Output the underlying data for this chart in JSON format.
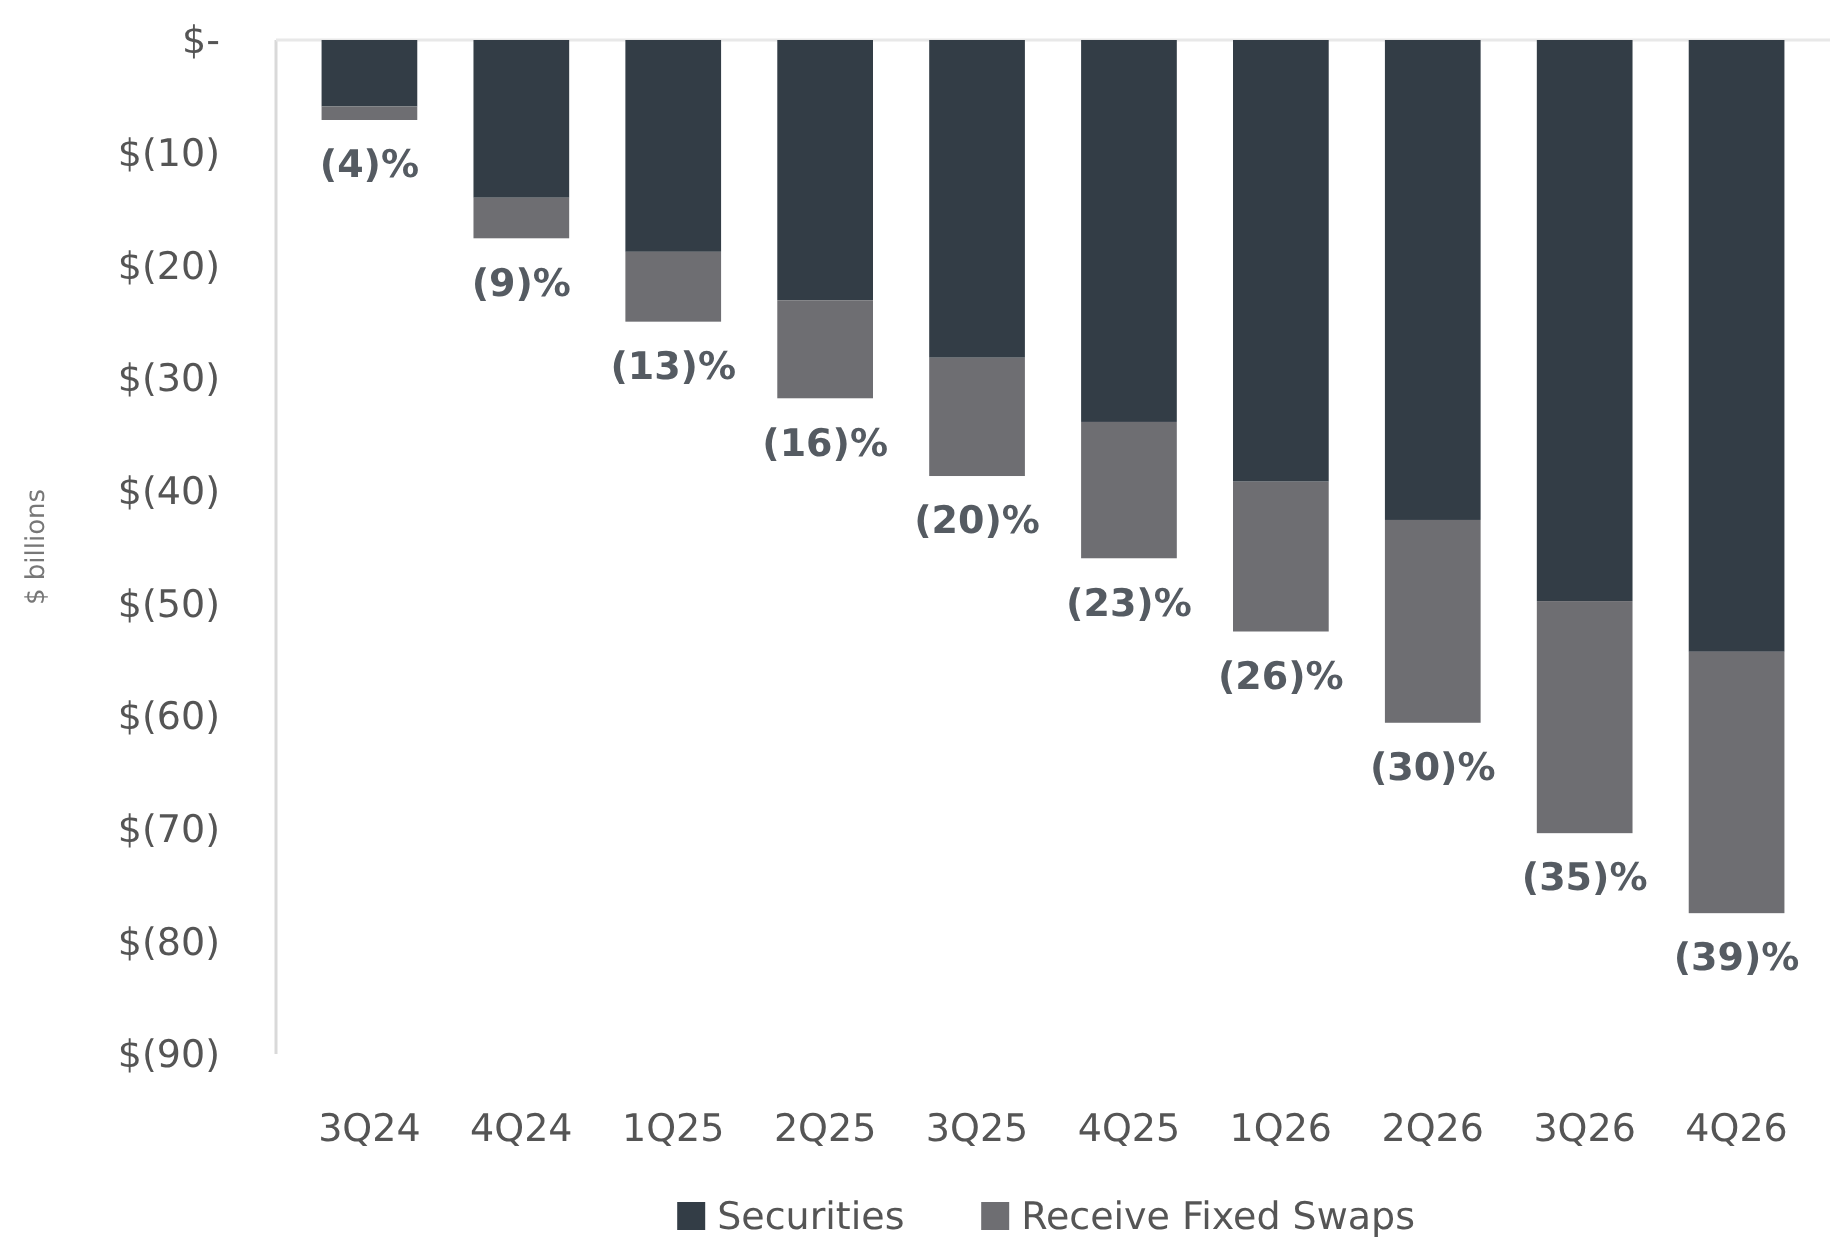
{
  "chart_data": {
    "type": "bar",
    "stacked": true,
    "ylabel": "$ billions",
    "categories": [
      "3Q24",
      "4Q24",
      "1Q25",
      "2Q25",
      "3Q25",
      "4Q25",
      "1Q26",
      "2Q26",
      "3Q26",
      "4Q26"
    ],
    "series": [
      {
        "name": "Securities",
        "color": "#333d46",
        "values": [
          -5.9,
          -14,
          -18.8,
          -23.1,
          -28.2,
          -33.9,
          -39.2,
          -42.6,
          -49.8,
          -54.3
        ]
      },
      {
        "name": "Receive Fixed Swaps",
        "color": "#6e6e72",
        "values": [
          -1.2,
          -3.6,
          -6.2,
          -8.7,
          -10.5,
          -12.1,
          -13.3,
          -18,
          -20.6,
          -23.2
        ]
      }
    ],
    "ylim": [
      -90,
      0
    ],
    "yticks": [
      {
        "value": 0,
        "label": "$-"
      },
      {
        "value": -10,
        "label": "$(10)"
      },
      {
        "value": -20,
        "label": "$(20)"
      },
      {
        "value": -30,
        "label": "$(30)"
      },
      {
        "value": -40,
        "label": "$(40)"
      },
      {
        "value": -50,
        "label": "$(50)"
      },
      {
        "value": -60,
        "label": "$(60)"
      },
      {
        "value": -70,
        "label": "$(70)"
      },
      {
        "value": -80,
        "label": "$(80)"
      },
      {
        "value": -90,
        "label": "$(90)"
      }
    ],
    "annotations": [
      {
        "text": "(4)%",
        "x": "3Q24",
        "y": -7.1
      },
      {
        "text": "(9)%",
        "x": "4Q24",
        "y": -17.6
      },
      {
        "text": "(13)%",
        "x": "1Q25",
        "y": -25
      },
      {
        "text": "(16)%",
        "x": "2Q25",
        "y": -31.8
      },
      {
        "text": "(20)%",
        "x": "3Q25",
        "y": -38.7
      },
      {
        "text": "(23)%",
        "x": "4Q25",
        "y": -46
      },
      {
        "text": "(26)%",
        "x": "1Q26",
        "y": -52.5
      },
      {
        "text": "(30)%",
        "x": "2Q26",
        "y": -60.6
      },
      {
        "text": "(35)%",
        "x": "3Q26",
        "y": -70.4
      },
      {
        "text": "(39)%",
        "x": "4Q26",
        "y": -77.5
      }
    ],
    "legend": "bottom",
    "grid": false
  }
}
